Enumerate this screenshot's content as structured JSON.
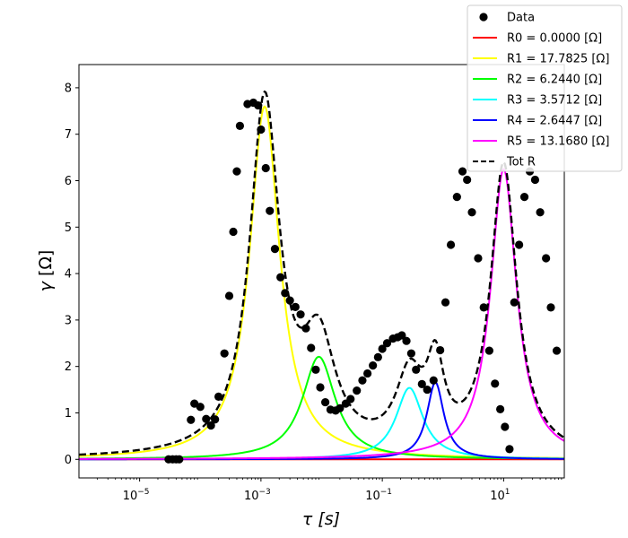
{
  "chart_data": {
    "type": "line",
    "xscale": "log",
    "xlim": [
      1e-06,
      100
    ],
    "ylim": [
      -0.4,
      8.5
    ],
    "xlabel_sym": "τ",
    "xlabel_unit": "[s]",
    "ylabel_sym": "γ",
    "ylabel_unit": "[Ω]",
    "x_ticks": [
      {
        "value": 1e-05,
        "base": "10",
        "exp": "−5"
      },
      {
        "value": 0.001,
        "base": "10",
        "exp": "−3"
      },
      {
        "value": 0.1,
        "base": "10",
        "exp": "−1"
      },
      {
        "value": 10,
        "base": "10",
        "exp": "1"
      }
    ],
    "y_ticks": [
      0,
      1,
      2,
      3,
      4,
      5,
      6,
      7,
      8
    ],
    "series": [
      {
        "name": "R0",
        "label": "R0 = 0.0000 [Ω]",
        "color": "#ff0000",
        "kind": "peak",
        "amp": 0.0,
        "center": 1.0,
        "width": 0.3
      },
      {
        "name": "R1",
        "label": "R1 = 17.7825 [Ω]",
        "color": "#ffff00",
        "kind": "peak",
        "amp": 7.6,
        "center": 0.00115,
        "width": 0.3
      },
      {
        "name": "R2",
        "label": "R2 = 6.2440 [Ω]",
        "color": "#00ff00",
        "kind": "peak",
        "amp": 2.21,
        "center": 0.009,
        "width": 0.33
      },
      {
        "name": "R3",
        "label": "R3 = 3.5712 [Ω]",
        "color": "#00ffff",
        "kind": "peak",
        "amp": 1.54,
        "center": 0.28,
        "width": 0.27
      },
      {
        "name": "R4",
        "label": "R4 = 2.6447 [Ω]",
        "color": "#0000ff",
        "kind": "peak",
        "amp": 1.66,
        "center": 0.75,
        "width": 0.17
      },
      {
        "name": "R5",
        "label": "R5 = 13.1680 [Ω]",
        "color": "#ff00ff",
        "kind": "peak",
        "amp": 6.25,
        "center": 10.0,
        "width": 0.26
      },
      {
        "name": "Tot R",
        "label": "Tot R",
        "color": "#000000",
        "kind": "total",
        "dashed": true
      }
    ],
    "data_points": {
      "label": "Data",
      "color": "#000000",
      "x": [
        3e-05,
        3.5e-05,
        4e-05,
        4.5e-05,
        7e-05,
        8e-05,
        0.0001,
        0.000125,
        0.00015,
        0.000175,
        0.0002,
        0.00025,
        0.0003,
        0.00035,
        0.0004,
        0.00045,
        0.0006,
        0.00075,
        0.0009,
        0.001,
        0.0012,
        0.0014,
        0.0017,
        0.0021,
        0.0025,
        0.003,
        0.0037,
        0.0045,
        0.0055,
        0.0067,
        0.008,
        0.0095,
        0.0115,
        0.014,
        0.017,
        0.02,
        0.025,
        0.03,
        0.038,
        0.047,
        0.057,
        0.07,
        0.085,
        0.1,
        0.12,
        0.15,
        0.18,
        0.21,
        0.25,
        0.3,
        0.36,
        0.45,
        0.55,
        0.7,
        0.9,
        1.1,
        1.35,
        1.7,
        2.1,
        2.5,
        3.0,
        3.8,
        4.7,
        5.8,
        7.2,
        8.8,
        10.5,
        12.5,
        15.0,
        18.0,
        22.0,
        27.0,
        33.0,
        40.0,
        50.0,
        60.0,
        75.0
      ],
      "y": [
        0.0,
        0.0,
        0.0,
        0.0,
        0.85,
        1.2,
        1.13,
        0.87,
        0.73,
        0.86,
        1.35,
        2.28,
        3.52,
        4.9,
        6.2,
        7.18,
        7.65,
        7.68,
        7.62,
        7.1,
        6.27,
        5.35,
        4.53,
        3.92,
        3.58,
        3.42,
        3.28,
        3.12,
        2.82,
        2.4,
        1.93,
        1.55,
        1.23,
        1.07,
        1.05,
        1.1,
        1.2,
        1.3,
        1.48,
        1.7,
        1.85,
        2.02,
        2.2,
        2.38,
        2.5,
        2.6,
        2.63,
        2.67,
        2.55,
        2.28,
        1.93,
        1.62,
        1.5,
        1.7,
        2.35,
        3.38,
        4.62,
        5.65,
        6.2,
        6.02,
        5.32,
        4.33,
        3.27,
        2.34,
        1.63,
        1.08,
        0.7,
        0.22,
        3.38,
        4.62,
        5.65,
        6.2,
        6.02,
        5.32,
        4.33,
        3.27,
        2.34
      ]
    }
  }
}
